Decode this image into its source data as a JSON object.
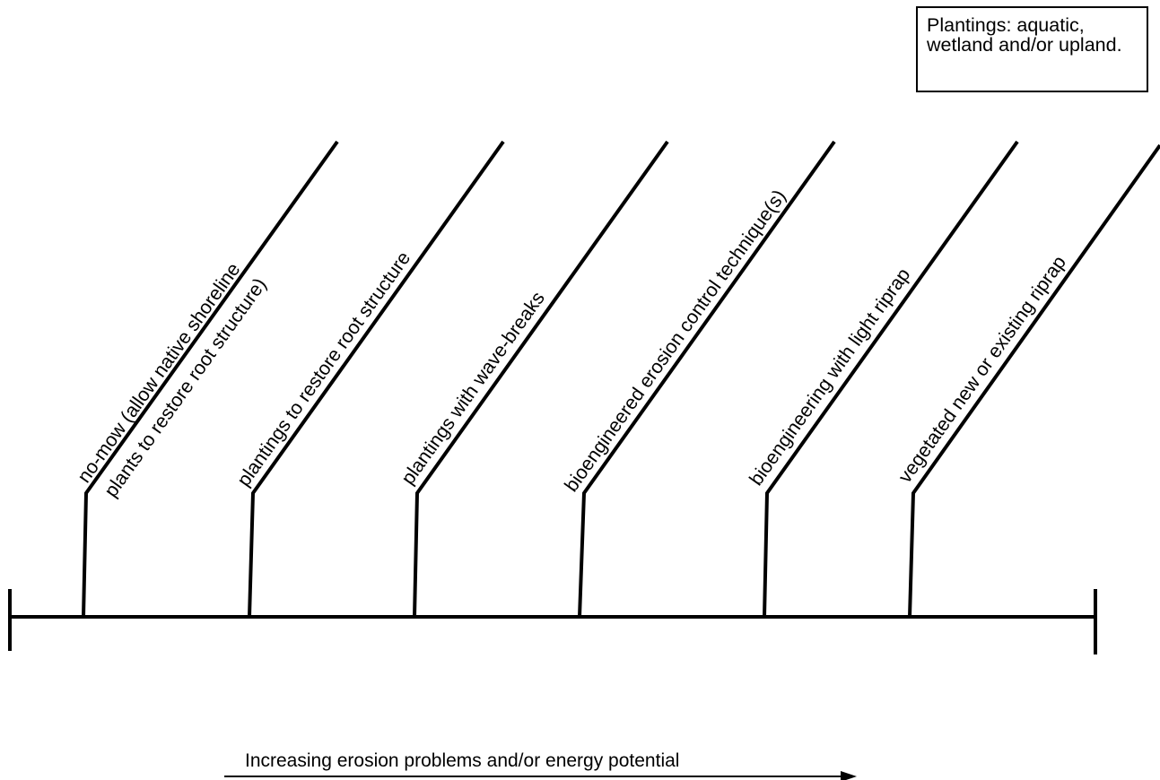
{
  "legend": {
    "text": "Plantings: aquatic, wetland and/or upland."
  },
  "options": [
    {
      "line1": "no-mow (allow native shoreline",
      "line2": "plants to restore root structure)"
    },
    {
      "line1": "plantings to restore root structure"
    },
    {
      "line1": "plantings with wave-breaks"
    },
    {
      "line1": "bioengineered erosion control technique(s)"
    },
    {
      "line1": "bioengineering with light riprap"
    },
    {
      "line1": "vegetated new or existing riprap"
    }
  ],
  "axis": {
    "label": "Increasing erosion problems and/or energy potential"
  }
}
